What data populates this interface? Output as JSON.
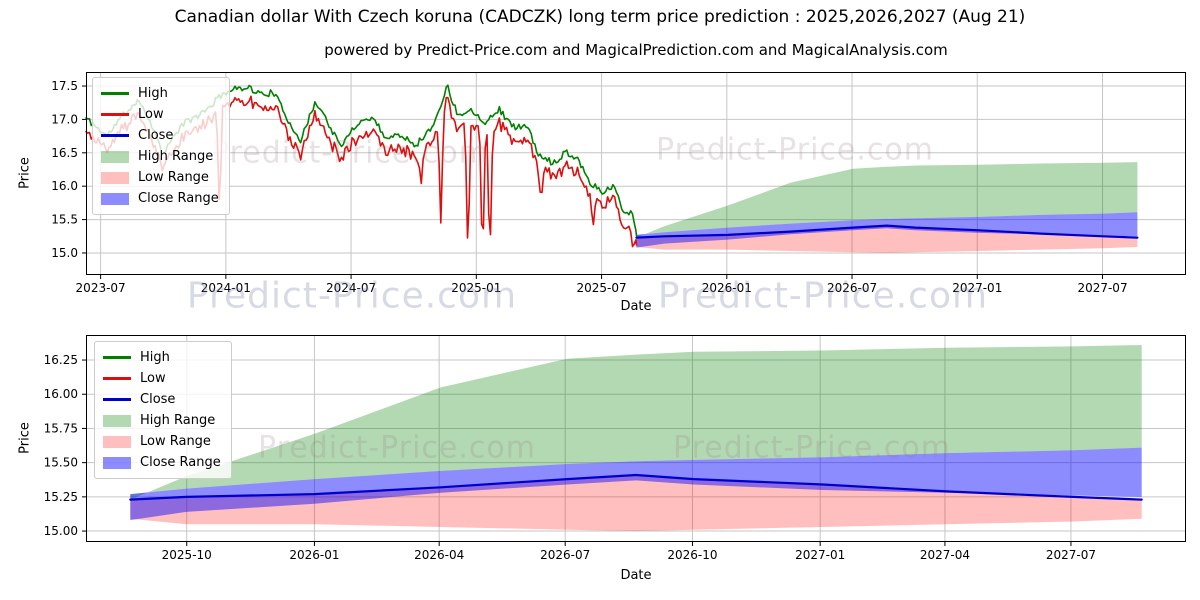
{
  "titles": {
    "figure_title": "Canadian dollar With Czech koruna (CADCZK) long term price prediction : 2025,2026,2027 (Aug 21)",
    "subtitle": "powered by Predict-Price.com and MagicalPrediction.com and MagicalAnalysis.com"
  },
  "watermark": {
    "text": "Predict-Price.com"
  },
  "colors": {
    "high_line": "#008000",
    "low_line": "#dd0e0e",
    "close_line": "#0000cd",
    "high_range_fill": "rgba(0,128,0,0.30)",
    "low_range_fill": "rgba(255,0,0,0.25)",
    "close_range_fill": "rgba(0,0,255,0.45)",
    "grid": "#c6c6c6",
    "spine": "#000000",
    "tick_text": "#000000"
  },
  "legend": {
    "items": [
      {
        "label": "High",
        "swatch": "line",
        "color": "#008000"
      },
      {
        "label": "Low",
        "swatch": "line",
        "color": "#dd0e0e"
      },
      {
        "label": "Close",
        "swatch": "line",
        "color": "#0000cd"
      },
      {
        "label": "High Range",
        "swatch": "patch",
        "color": "rgba(0,128,0,0.30)"
      },
      {
        "label": "Low Range",
        "swatch": "patch",
        "color": "rgba(255,0,0,0.25)"
      },
      {
        "label": "Close Range",
        "swatch": "patch",
        "color": "rgba(0,0,255,0.45)"
      }
    ]
  },
  "chart_data": [
    {
      "type": "line",
      "name": "historical-and-prediction",
      "xlabel": "Date",
      "ylabel": "Price",
      "grid": true,
      "legend_position": "upper left",
      "legend_entries": [
        "High",
        "Low",
        "Close",
        "High Range",
        "Low Range",
        "Close Range"
      ],
      "x_tick_labels": [
        "2023-07",
        "2024-01",
        "2024-07",
        "2025-01",
        "2025-07",
        "2026-01",
        "2026-07",
        "2027-01",
        "2027-07"
      ],
      "y_tick_labels": [
        "15.0",
        "15.5",
        "16.0",
        "16.5",
        "17.0",
        "17.5"
      ],
      "yticks": [
        15.0,
        15.5,
        16.0,
        16.5,
        17.0,
        17.5
      ],
      "ylim": [
        14.67,
        17.71
      ],
      "history": {
        "description": "noisy daily High/Low lines 2023-07 to 2025-08-21, months measured from 2023-07-01",
        "high_anchors": [
          [
            -0.7,
            17.02
          ],
          [
            0.3,
            16.75
          ],
          [
            1.1,
            17.08
          ],
          [
            1.9,
            17.28
          ],
          [
            2.4,
            16.95
          ],
          [
            3.0,
            16.5
          ],
          [
            3.9,
            16.92
          ],
          [
            5.0,
            17.12
          ],
          [
            5.9,
            17.4
          ],
          [
            7.0,
            17.5
          ],
          [
            7.6,
            17.38
          ],
          [
            8.3,
            17.4
          ],
          [
            9.0,
            16.98
          ],
          [
            9.6,
            16.68
          ],
          [
            10.3,
            17.28
          ],
          [
            10.9,
            16.95
          ],
          [
            11.5,
            16.58
          ],
          [
            12.2,
            16.92
          ],
          [
            13.0,
            17.04
          ],
          [
            13.7,
            16.72
          ],
          [
            14.4,
            16.78
          ],
          [
            15.1,
            16.62
          ],
          [
            15.9,
            16.88
          ],
          [
            16.6,
            17.5
          ],
          [
            17.1,
            17.08
          ],
          [
            17.8,
            17.14
          ],
          [
            18.4,
            16.96
          ],
          [
            19.1,
            17.15
          ],
          [
            19.8,
            16.88
          ],
          [
            20.4,
            16.92
          ],
          [
            21.0,
            16.45
          ],
          [
            21.7,
            16.35
          ],
          [
            22.3,
            16.52
          ],
          [
            22.9,
            16.4
          ],
          [
            23.5,
            16.02
          ],
          [
            24.1,
            15.92
          ],
          [
            24.6,
            16.0
          ],
          [
            25.1,
            15.58
          ],
          [
            25.45,
            15.65
          ],
          [
            25.67,
            15.26
          ]
        ],
        "low_spikes": [
          [
            5.7,
            15.52
          ],
          [
            15.35,
            15.98
          ],
          [
            16.3,
            15.45
          ],
          [
            17.6,
            14.85
          ],
          [
            18.3,
            14.78
          ],
          [
            18.65,
            14.85
          ],
          [
            21.1,
            15.75
          ],
          [
            23.6,
            15.4
          ],
          [
            25.5,
            15.05
          ]
        ],
        "noise_seed": 11,
        "noise_high": 0.1,
        "gap_min": 0.13,
        "gap_var": 0.14,
        "sample_step": 0.085,
        "spike_width": 0.14,
        "start_m": -0.7,
        "end_m": 25.67,
        "end_high": 15.26,
        "end_low": 15.12
      },
      "prediction": {
        "dates": [
          "2025-08-21",
          "2025-10-01",
          "2026-01-01",
          "2026-04-01",
          "2026-07-01",
          "2026-08-21",
          "2026-10-01",
          "2027-01-01",
          "2027-04-01",
          "2027-07-01",
          "2027-08-21"
        ],
        "months": [
          0,
          1.33,
          4.37,
          7.37,
          10.37,
          12,
          13.37,
          16.43,
          19.37,
          22.37,
          24
        ],
        "close": [
          15.23,
          15.25,
          15.27,
          15.32,
          15.38,
          15.41,
          15.38,
          15.34,
          15.29,
          15.25,
          15.23
        ],
        "high_top": [
          15.23,
          15.4,
          15.71,
          16.05,
          16.26,
          16.29,
          16.31,
          16.32,
          16.34,
          16.35,
          16.36
        ],
        "close_top": [
          15.27,
          15.31,
          15.38,
          15.44,
          15.49,
          15.51,
          15.52,
          15.54,
          15.57,
          15.59,
          15.61
        ],
        "close_bottom": [
          15.08,
          15.14,
          15.2,
          15.28,
          15.34,
          15.37,
          15.34,
          15.3,
          15.28,
          15.26,
          15.25
        ],
        "low_top": [
          15.21,
          15.22,
          15.24,
          15.29,
          15.34,
          15.36,
          15.34,
          15.31,
          15.29,
          15.27,
          15.26
        ],
        "low_bottom": [
          15.09,
          15.05,
          15.05,
          15.03,
          15.01,
          15.0,
          15.01,
          15.03,
          15.05,
          15.07,
          15.09
        ]
      }
    },
    {
      "type": "line",
      "name": "prediction-detail",
      "xlabel": "Date",
      "ylabel": "Price",
      "grid": true,
      "legend_position": "upper left",
      "legend_entries": [
        "High",
        "Low",
        "Close",
        "High Range",
        "Low Range",
        "Close Range"
      ],
      "x_tick_labels": [
        "2025-10",
        "2026-01",
        "2026-04",
        "2026-07",
        "2026-10",
        "2027-01",
        "2027-04",
        "2027-07"
      ],
      "y_tick_labels": [
        "15.00",
        "15.25",
        "15.50",
        "15.75",
        "16.00",
        "16.25"
      ],
      "yticks": [
        15.0,
        15.25,
        15.5,
        15.75,
        16.0,
        16.25
      ],
      "ylim": [
        14.92,
        16.433
      ],
      "prediction": {
        "dates": [
          "2025-08-21",
          "2025-10-01",
          "2026-01-01",
          "2026-04-01",
          "2026-07-01",
          "2026-08-21",
          "2026-10-01",
          "2027-01-01",
          "2027-04-01",
          "2027-07-01",
          "2027-08-21"
        ],
        "months": [
          0,
          1.33,
          4.37,
          7.37,
          10.37,
          12,
          13.37,
          16.43,
          19.37,
          22.37,
          24
        ],
        "close": [
          15.23,
          15.25,
          15.27,
          15.32,
          15.38,
          15.41,
          15.38,
          15.34,
          15.29,
          15.25,
          15.23
        ],
        "high_top": [
          15.23,
          15.4,
          15.71,
          16.05,
          16.26,
          16.29,
          16.31,
          16.32,
          16.34,
          16.35,
          16.36
        ],
        "close_top": [
          15.27,
          15.31,
          15.38,
          15.44,
          15.49,
          15.51,
          15.52,
          15.54,
          15.57,
          15.59,
          15.61
        ],
        "close_bottom": [
          15.08,
          15.14,
          15.2,
          15.28,
          15.34,
          15.37,
          15.34,
          15.3,
          15.28,
          15.26,
          15.25
        ],
        "low_top": [
          15.21,
          15.22,
          15.24,
          15.29,
          15.34,
          15.36,
          15.34,
          15.31,
          15.29,
          15.27,
          15.26
        ],
        "low_bottom": [
          15.09,
          15.05,
          15.05,
          15.03,
          15.01,
          15.0,
          15.01,
          15.03,
          15.05,
          15.07,
          15.09
        ]
      }
    }
  ]
}
